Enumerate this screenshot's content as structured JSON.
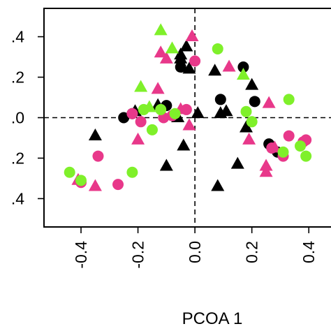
{
  "chart_data": {
    "type": "scatter",
    "title": "",
    "xlabel": "PCOA 1",
    "ylabel": "",
    "xlim": [
      -0.53,
      0.5
    ],
    "ylim": [
      -0.54,
      0.54
    ],
    "x_ticks": [
      -0.4,
      -0.2,
      0.0,
      0.2,
      0.4
    ],
    "x_tick_labels": [
      "-0.4",
      "-0.2",
      "0.0",
      "0.2",
      "0.4"
    ],
    "y_ticks": [
      0.4,
      0.2,
      0.0,
      -0.2,
      -0.4
    ],
    "y_tick_labels": [
      ".4",
      ".2",
      ".0",
      ".2",
      ".4"
    ],
    "reference_lines": {
      "x": 0,
      "y": 0,
      "style": "dashed"
    },
    "grid": false,
    "legend": "none",
    "colors": {
      "black": "#000000",
      "pink": "#e8388a",
      "green": "#7ff02a"
    },
    "series": [
      {
        "color": "black",
        "marker": "circle",
        "x": [
          -0.25,
          -0.22,
          -0.1,
          -0.05,
          0.09,
          0.17,
          0.21,
          0.26,
          0.29
        ],
        "y": [
          0.0,
          0.02,
          0.06,
          0.25,
          0.09,
          0.25,
          0.08,
          -0.13,
          -0.17
        ]
      },
      {
        "color": "black",
        "marker": "triangle",
        "x": [
          -0.35,
          -0.21,
          -0.13,
          -0.06,
          -0.05,
          -0.05,
          -0.03,
          -0.02,
          -0.1,
          -0.04,
          0.01,
          0.07,
          0.09,
          0.11,
          0.15,
          0.18,
          0.2,
          0.08
        ],
        "y": [
          -0.09,
          0.03,
          0.06,
          0.0,
          0.29,
          0.31,
          0.35,
          0.24,
          -0.24,
          -0.14,
          0.02,
          0.23,
          0.02,
          0.03,
          -0.23,
          -0.05,
          0.16,
          -0.34
        ]
      },
      {
        "color": "pink",
        "marker": "circle",
        "x": [
          -0.4,
          -0.34,
          -0.27,
          -0.22,
          -0.19,
          -0.11,
          -0.08,
          -0.03,
          0.0,
          0.27,
          0.31,
          0.33,
          0.38,
          0.39
        ],
        "y": [
          -0.32,
          -0.19,
          -0.33,
          0.02,
          -0.02,
          0.0,
          0.01,
          0.04,
          0.28,
          -0.15,
          -0.19,
          -0.09,
          -0.12,
          -0.11
        ]
      },
      {
        "color": "pink",
        "marker": "triangle",
        "x": [
          -0.41,
          -0.35,
          -0.2,
          -0.13,
          -0.12,
          -0.1,
          -0.05,
          -0.01,
          -0.02,
          0.12,
          0.19,
          0.25,
          0.25,
          0.26,
          0.28
        ],
        "y": [
          -0.31,
          -0.34,
          -0.11,
          0.14,
          0.32,
          0.29,
          0.04,
          0.4,
          -0.04,
          0.25,
          -0.11,
          -0.24,
          -0.27,
          0.07,
          -0.15
        ]
      },
      {
        "color": "green",
        "marker": "circle",
        "x": [
          -0.44,
          -0.4,
          -0.22,
          -0.18,
          -0.15,
          -0.12,
          -0.07,
          0.08,
          0.18,
          0.2,
          0.31,
          0.33,
          0.37,
          0.39
        ],
        "y": [
          -0.27,
          -0.31,
          -0.27,
          0.04,
          -0.06,
          0.04,
          0.02,
          0.34,
          0.03,
          -0.02,
          -0.17,
          0.09,
          -0.14,
          -0.19
        ]
      },
      {
        "color": "green",
        "marker": "triangle",
        "x": [
          -0.19,
          -0.12,
          -0.16,
          -0.08,
          0.17
        ],
        "y": [
          0.15,
          0.43,
          0.05,
          0.34,
          0.21
        ]
      }
    ]
  }
}
